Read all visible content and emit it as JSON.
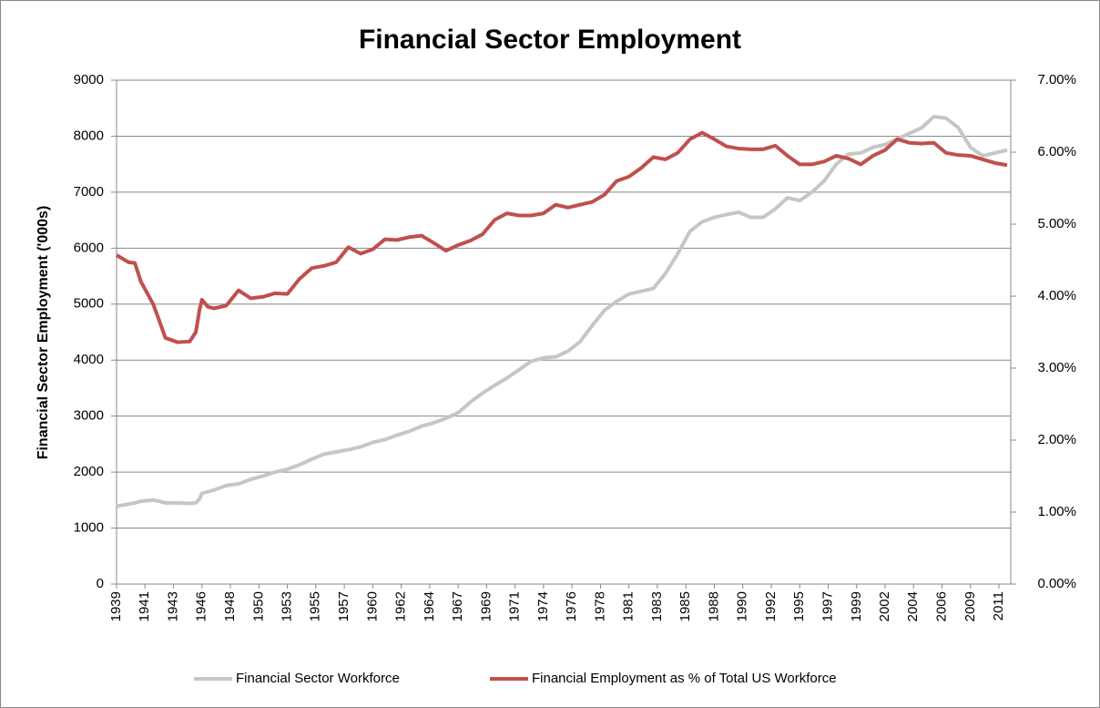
{
  "chart_data": {
    "type": "line",
    "title": "Financial Sector Employment",
    "y_label": "Financial Sector Employment ('000s)",
    "x": [
      1939,
      1940,
      1940.5,
      1941,
      1942,
      1942.5,
      1943,
      1944,
      1945,
      1945.5,
      1945.8,
      1946,
      1946.5,
      1947,
      1948,
      1949,
      1950,
      1951,
      1952,
      1953,
      1954,
      1955,
      1956,
      1957,
      1958,
      1959,
      1960,
      1961,
      1962,
      1963,
      1964,
      1965,
      1966,
      1967,
      1968,
      1969,
      1970,
      1971,
      1972,
      1973,
      1974,
      1975,
      1976,
      1977,
      1978,
      1979,
      1980,
      1981,
      1982,
      1983,
      1984,
      1985,
      1986,
      1987,
      1988,
      1989,
      1990,
      1991,
      1992,
      1993,
      1994,
      1995,
      1996,
      1997,
      1998,
      1999,
      2000,
      2001,
      2002,
      2003,
      2004,
      2005,
      2006,
      2007,
      2008,
      2009,
      2010,
      2011,
      2012
    ],
    "series": [
      {
        "name": "Financial Sector Workforce",
        "color": "#c6c6c6",
        "values": [
          1390,
          1430,
          1450,
          1480,
          1500,
          1480,
          1450,
          1450,
          1440,
          1450,
          1520,
          1620,
          1650,
          1680,
          1760,
          1790,
          1870,
          1930,
          2000,
          2050,
          2130,
          2230,
          2320,
          2360,
          2400,
          2450,
          2530,
          2580,
          2660,
          2730,
          2820,
          2880,
          2960,
          3060,
          3250,
          3410,
          3550,
          3680,
          3830,
          3980,
          4040,
          4060,
          4160,
          4330,
          4620,
          4890,
          5050,
          5180,
          5230,
          5280,
          5550,
          5900,
          6300,
          6470,
          6550,
          6600,
          6640,
          6550,
          6550,
          6700,
          6900,
          6850,
          7000,
          7200,
          7500,
          7680,
          7700,
          7800,
          7850,
          7950,
          8050,
          8150,
          8350,
          8320,
          8150,
          7800,
          7650,
          7700,
          7750
        ]
      },
      {
        "name": "Financial Employment as % of Total US Workforce",
        "color": "#c0504d",
        "axis": "y2",
        "values": [
          4.57,
          4.47,
          4.46,
          4.2,
          3.89,
          3.66,
          3.42,
          3.36,
          3.37,
          3.5,
          3.81,
          3.95,
          3.85,
          3.83,
          3.87,
          4.08,
          3.97,
          3.99,
          4.04,
          4.03,
          4.24,
          4.39,
          4.42,
          4.47,
          4.68,
          4.59,
          4.65,
          4.79,
          4.78,
          4.82,
          4.84,
          4.74,
          4.63,
          4.71,
          4.77,
          4.86,
          5.06,
          5.15,
          5.12,
          5.12,
          5.15,
          5.27,
          5.23,
          5.27,
          5.31,
          5.41,
          5.6,
          5.66,
          5.78,
          5.93,
          5.9,
          5.99,
          6.18,
          6.27,
          6.18,
          6.08,
          6.05,
          6.04,
          6.04,
          6.09,
          5.95,
          5.83,
          5.83,
          5.87,
          5.95,
          5.91,
          5.83,
          5.95,
          6.03,
          6.18,
          6.13,
          6.12,
          6.13,
          5.99,
          5.96,
          5.95,
          5.9,
          5.85,
          5.82
        ]
      }
    ],
    "xlim": [
      1939,
      2012.3
    ],
    "xticks": [
      1939,
      {
        "value": 1941.33,
        "label": "1941"
      },
      {
        "value": 1943.67,
        "label": "1943"
      },
      1946,
      {
        "value": 1948.33,
        "label": "1948"
      },
      {
        "value": 1950.67,
        "label": "1950"
      },
      1953,
      {
        "value": 1955.33,
        "label": "1955"
      },
      {
        "value": 1957.67,
        "label": "1957"
      },
      1960,
      {
        "value": 1962.33,
        "label": "1962"
      },
      {
        "value": 1964.67,
        "label": "1964"
      },
      1967,
      {
        "value": 1969.33,
        "label": "1969"
      },
      {
        "value": 1971.67,
        "label": "1971"
      },
      1974,
      {
        "value": 1976.33,
        "label": "1976"
      },
      {
        "value": 1978.67,
        "label": "1978"
      },
      1981,
      {
        "value": 1983.33,
        "label": "1983"
      },
      {
        "value": 1985.67,
        "label": "1985"
      },
      1988,
      {
        "value": 1990.33,
        "label": "1990"
      },
      {
        "value": 1992.67,
        "label": "1992"
      },
      1995,
      {
        "value": 1997.33,
        "label": "1997"
      },
      {
        "value": 1999.67,
        "label": "1999"
      },
      2002,
      {
        "value": 2004.33,
        "label": "2004"
      },
      {
        "value": 2006.67,
        "label": "2006"
      },
      2009,
      {
        "value": 2011.33,
        "label": "2011"
      }
    ],
    "ylim": [
      0,
      9000
    ],
    "yticks": [
      0,
      1000,
      2000,
      3000,
      4000,
      5000,
      6000,
      7000,
      8000,
      9000
    ],
    "y2lim": [
      0,
      7
    ],
    "y2ticks": [
      {
        "value": 0,
        "label": "0.00%"
      },
      {
        "value": 1,
        "label": "1.00%"
      },
      {
        "value": 2,
        "label": "2.00%"
      },
      {
        "value": 3,
        "label": "3.00%"
      },
      {
        "value": 4,
        "label": "4.00%"
      },
      {
        "value": 5,
        "label": "5.00%"
      },
      {
        "value": 6,
        "label": "6.00%"
      },
      {
        "value": 7,
        "label": "7.00%"
      }
    ],
    "grid": true,
    "legend": "bottom"
  }
}
